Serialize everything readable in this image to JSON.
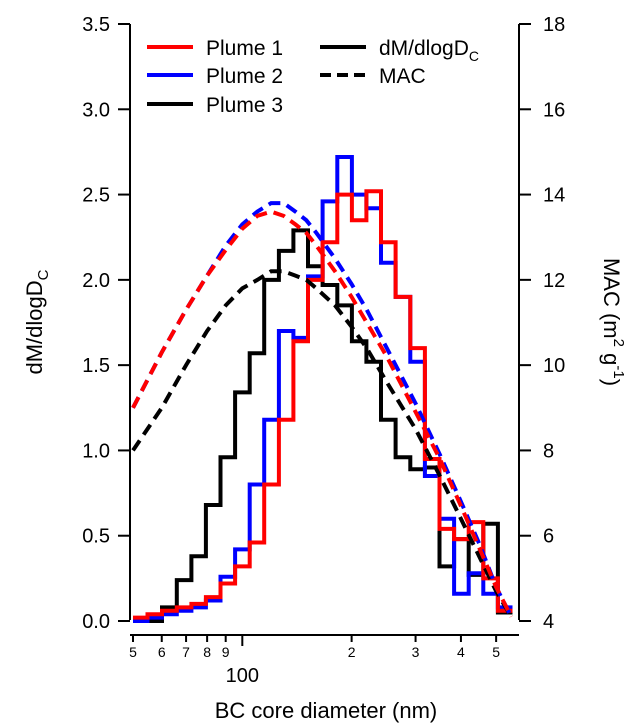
{
  "chart_data": {
    "type": "line",
    "xlabel": "BC core diameter (nm)",
    "ylabel_left_main": "dM/dlogD",
    "ylabel_left_sub": "C",
    "ylabel_right_main": "MAC (m",
    "ylabel_right_sup1": "2",
    "ylabel_right_mid": " g",
    "ylabel_right_sup2": "-1",
    "ylabel_right_end": ")",
    "x_scale": "log",
    "xlim": [
      50,
      560
    ],
    "ylim_left": [
      0,
      3.5
    ],
    "ylim_right": [
      4,
      18
    ],
    "x_ticks": [
      {
        "v": 50,
        "label": "5",
        "major": false
      },
      {
        "v": 60,
        "label": "6",
        "major": false
      },
      {
        "v": 70,
        "label": "7",
        "major": false
      },
      {
        "v": 80,
        "label": "8",
        "major": false
      },
      {
        "v": 90,
        "label": "9",
        "major": false
      },
      {
        "v": 100,
        "label": "100",
        "major": true
      },
      {
        "v": 200,
        "label": "2",
        "major": false
      },
      {
        "v": 300,
        "label": "3",
        "major": false
      },
      {
        "v": 400,
        "label": "4",
        "major": false
      },
      {
        "v": 500,
        "label": "5",
        "major": false
      }
    ],
    "y_left_ticks": [
      "0.0",
      "0.5",
      "1.0",
      "1.5",
      "2.0",
      "2.5",
      "3.0",
      "3.5"
    ],
    "y_left_tick_values": [
      0,
      0.5,
      1.0,
      1.5,
      2.0,
      2.5,
      3.0,
      3.5
    ],
    "y_right_ticks": [
      "4",
      "6",
      "8",
      "10",
      "12",
      "14",
      "16",
      "18"
    ],
    "y_right_tick_values": [
      4,
      6,
      8,
      10,
      12,
      14,
      16,
      18
    ],
    "legend": {
      "placement": "top",
      "entries": [
        {
          "label": "Plume 1",
          "color": "#ff0000",
          "dash": false
        },
        {
          "label": "Plume 2",
          "color": "#0000ff",
          "dash": false
        },
        {
          "label": "Plume 3",
          "color": "#000000",
          "dash": false
        },
        {
          "label": "dM/dlogD",
          "sub": "C",
          "color": "#000000",
          "dash": false
        },
        {
          "label": "MAC",
          "color": "#000000",
          "dash": true
        }
      ]
    },
    "hist_edges": [
      50,
      54.8,
      60.1,
      66.0,
      72.4,
      79.4,
      87.1,
      95.5,
      104.8,
      114.9,
      126.1,
      138.3,
      151.7,
      166.4,
      182.6,
      200.3,
      219.7,
      241.0,
      264.4,
      290.1,
      318.2,
      349.1,
      383.0,
      420.2,
      460.9,
      505.7,
      554.8
    ],
    "series": [
      {
        "name": "Plume 1",
        "color": "#ff0000",
        "values": [
          0.02,
          0.04,
          0.06,
          0.08,
          0.1,
          0.14,
          0.22,
          0.32,
          0.46,
          0.8,
          1.18,
          1.64,
          2.0,
          2.22,
          2.5,
          2.35,
          2.52,
          2.22,
          1.9,
          1.6,
          0.95,
          0.54,
          0.48,
          0.58,
          0.25,
          0.06
        ]
      },
      {
        "name": "Plume 2",
        "color": "#0000ff",
        "values": [
          0.0,
          0.02,
          0.04,
          0.06,
          0.08,
          0.12,
          0.26,
          0.42,
          0.8,
          1.18,
          1.7,
          1.66,
          2.02,
          2.46,
          2.72,
          2.5,
          2.42,
          2.1,
          1.9,
          1.52,
          0.85,
          0.6,
          0.16,
          0.28,
          0.16,
          0.08
        ]
      },
      {
        "name": "Plume 3",
        "color": "#000000",
        "values": [
          0.0,
          0.0,
          0.08,
          0.24,
          0.38,
          0.68,
          0.96,
          1.34,
          1.57,
          2.0,
          2.17,
          2.29,
          2.08,
          1.97,
          1.85,
          1.64,
          1.52,
          1.18,
          0.96,
          0.89,
          0.9,
          0.32,
          0.48,
          0.27,
          0.57,
          0.05
        ]
      }
    ],
    "mac_curves": [
      {
        "name": "Plume 1",
        "color": "#ff0000",
        "x": [
          50,
          60,
          70,
          80,
          90,
          100,
          110,
          120,
          130,
          140,
          150,
          160,
          180,
          200,
          220,
          250,
          300,
          350,
          400,
          450,
          500,
          550
        ],
        "y": [
          9.0,
          10.3,
          11.3,
          12.1,
          12.7,
          13.2,
          13.5,
          13.6,
          13.5,
          13.3,
          13.1,
          12.8,
          12.2,
          11.6,
          11.0,
          10.2,
          8.9,
          7.8,
          6.7,
          5.7,
          4.8,
          4.1
        ]
      },
      {
        "name": "Plume 2",
        "color": "#0000ff",
        "x": [
          50,
          60,
          70,
          80,
          90,
          100,
          110,
          120,
          130,
          140,
          150,
          160,
          180,
          200,
          220,
          250,
          300,
          350,
          400,
          450,
          500,
          550
        ],
        "y": [
          9.0,
          10.3,
          11.3,
          12.1,
          12.8,
          13.3,
          13.6,
          13.8,
          13.8,
          13.6,
          13.4,
          13.1,
          12.5,
          11.9,
          11.3,
          10.4,
          9.1,
          7.9,
          6.8,
          5.8,
          4.8,
          4.1
        ]
      },
      {
        "name": "Plume 3",
        "color": "#000000",
        "x": [
          50,
          60,
          70,
          80,
          90,
          100,
          110,
          120,
          130,
          140,
          150,
          160,
          180,
          200,
          220,
          250,
          300,
          350,
          400,
          450,
          500,
          550
        ],
        "y": [
          8.0,
          9.0,
          10.0,
          10.8,
          11.4,
          11.8,
          12.0,
          12.2,
          12.2,
          12.1,
          12.0,
          11.8,
          11.4,
          10.9,
          10.4,
          9.6,
          8.5,
          7.4,
          6.4,
          5.5,
          4.7,
          4.1
        ]
      }
    ]
  }
}
